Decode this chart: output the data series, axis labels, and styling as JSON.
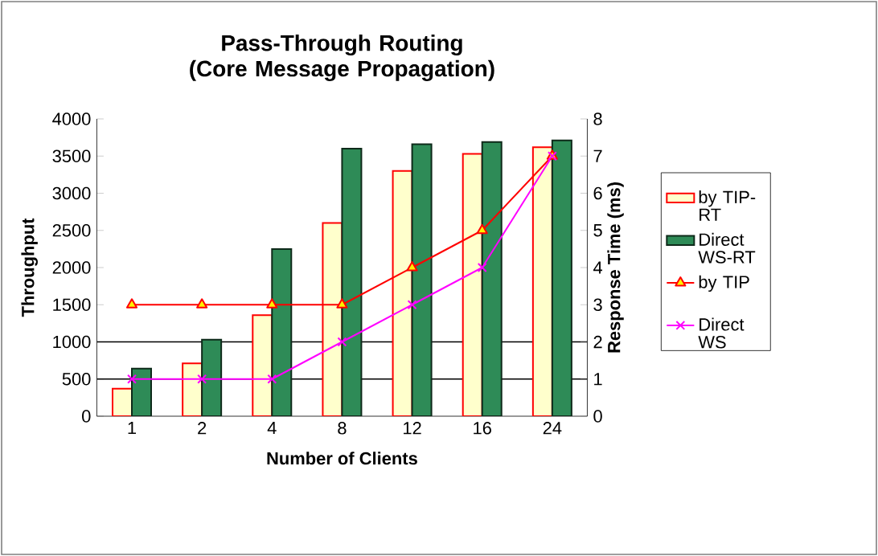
{
  "chart_data": {
    "type": "bar",
    "title": "Pass-Through Routing (Core Message Propagation)",
    "xlabel": "Number of Clients",
    "ylabel": "Throughput",
    "y2label": "Response Time (ms)",
    "categories": [
      "1",
      "2",
      "4",
      "8",
      "12",
      "16",
      "24"
    ],
    "series": [
      {
        "name": "by TIP-RT",
        "color": "#ffffcc",
        "values": [
          370,
          710,
          1360,
          2600,
          3300,
          3530,
          3620
        ]
      },
      {
        "name": "Direct WS-RT",
        "color": "#2e8b57",
        "values": [
          640,
          1030,
          2250,
          3600,
          3660,
          3690,
          3710
        ]
      },
      {
        "name": "by TIP",
        "type": "line",
        "axis": "y2",
        "color": "#ff0000",
        "marker": "triangle",
        "values": [
          3,
          3,
          3,
          3,
          4,
          5,
          7
        ]
      },
      {
        "name": "Direct WS",
        "type": "line",
        "axis": "y2",
        "color": "#ff00ff",
        "marker": "cross",
        "values": [
          1,
          1,
          1,
          2,
          3,
          4,
          7
        ]
      }
    ],
    "ylim": [
      0,
      4000
    ],
    "yticks": [
      0,
      500,
      1000,
      1500,
      2000,
      2500,
      3000,
      3500,
      4000
    ],
    "y2lim": [
      0,
      8
    ],
    "y2ticks": [
      0,
      1,
      2,
      3,
      4,
      5,
      6,
      7,
      8
    ],
    "ref_lines": [
      {
        "axis": "y",
        "value": 500
      },
      {
        "axis": "y",
        "value": 1000
      }
    ],
    "legend": "right"
  }
}
